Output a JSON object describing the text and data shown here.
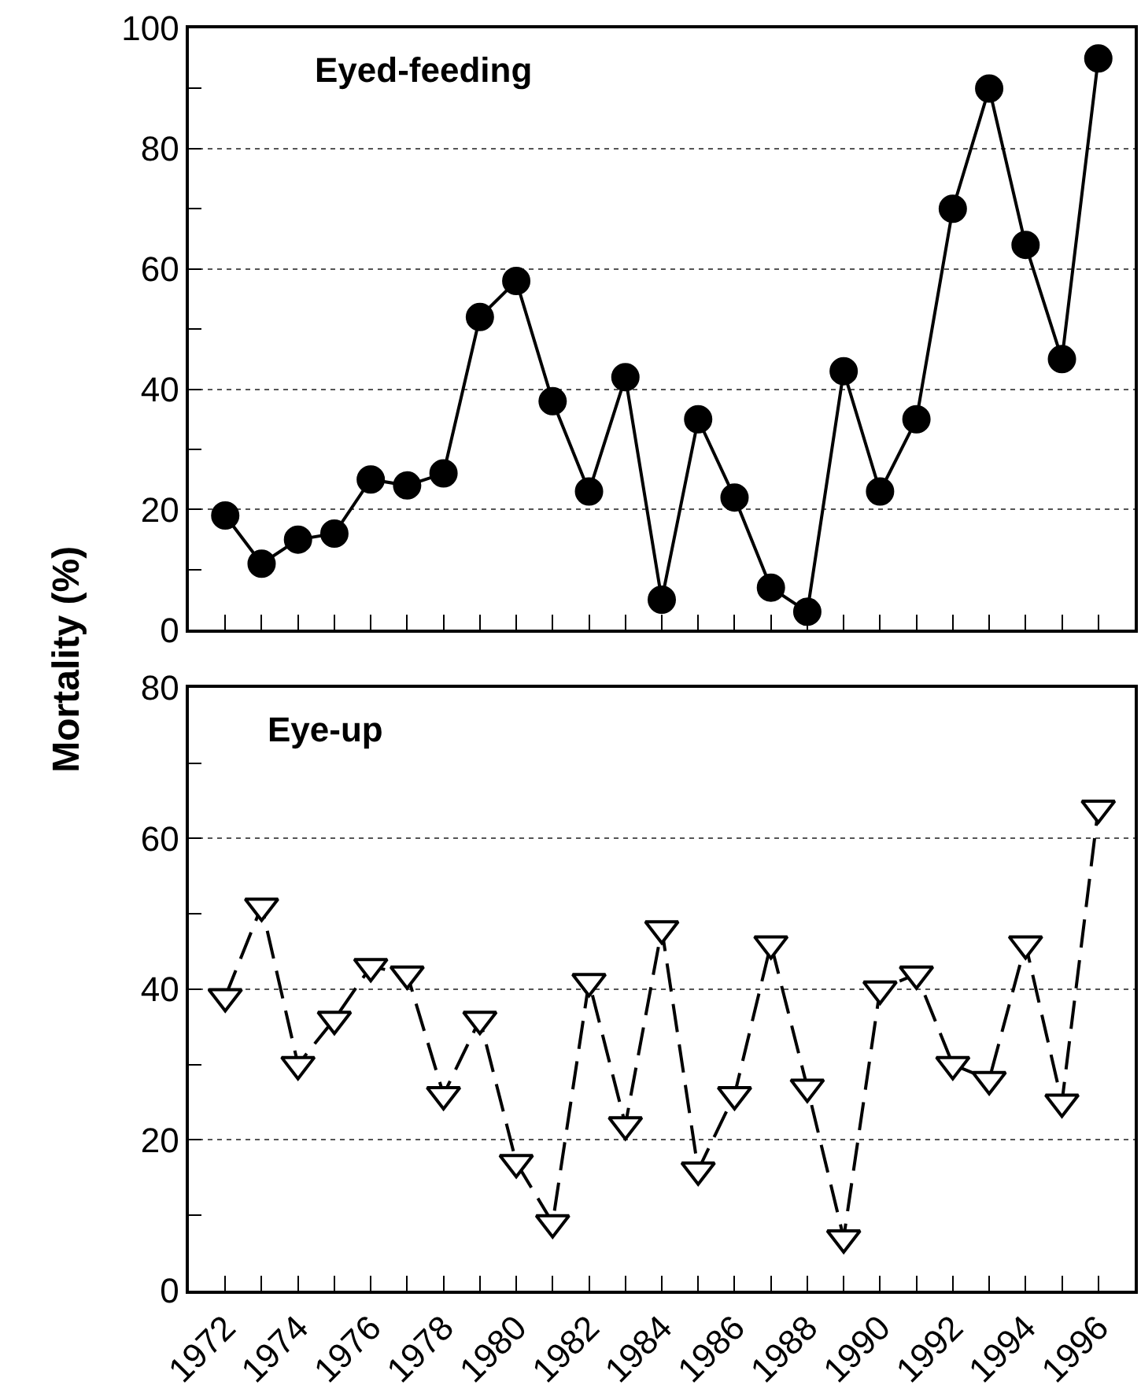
{
  "chart_data": [
    {
      "type": "line",
      "title": "Eyed-feeding",
      "ylabel": "Mortality (%)",
      "x": [
        1972,
        1973,
        1974,
        1975,
        1976,
        1977,
        1978,
        1979,
        1980,
        1981,
        1982,
        1983,
        1984,
        1985,
        1986,
        1987,
        1988,
        1989,
        1990,
        1991,
        1992,
        1993,
        1994,
        1995,
        1996
      ],
      "series": [
        {
          "color": "#000000",
          "marker": "circle",
          "line_style": "solid",
          "values": [
            19,
            11,
            15,
            16,
            25,
            24,
            26,
            52,
            58,
            38,
            23,
            42,
            5,
            35,
            22,
            7,
            3,
            43,
            23,
            35,
            70,
            90,
            64,
            45,
            95
          ]
        }
      ],
      "xlim": [
        1971,
        1997
      ],
      "xticks": [
        {
          "value": 1972,
          "label": null
        },
        {
          "value": 1973,
          "label": null
        },
        {
          "value": 1974,
          "label": null
        },
        {
          "value": 1975,
          "label": null
        },
        {
          "value": 1976,
          "label": null
        },
        {
          "value": 1977,
          "label": null
        },
        {
          "value": 1978,
          "label": null
        },
        {
          "value": 1979,
          "label": null
        },
        {
          "value": 1980,
          "label": null
        },
        {
          "value": 1981,
          "label": null
        },
        {
          "value": 1982,
          "label": null
        },
        {
          "value": 1983,
          "label": null
        },
        {
          "value": 1984,
          "label": null
        },
        {
          "value": 1985,
          "label": null
        },
        {
          "value": 1986,
          "label": null
        },
        {
          "value": 1987,
          "label": null
        },
        {
          "value": 1988,
          "label": null
        },
        {
          "value": 1989,
          "label": null
        },
        {
          "value": 1990,
          "label": null
        },
        {
          "value": 1991,
          "label": null
        },
        {
          "value": 1992,
          "label": null
        },
        {
          "value": 1993,
          "label": null
        },
        {
          "value": 1994,
          "label": null
        },
        {
          "value": 1995,
          "label": null
        },
        {
          "value": 1996,
          "label": null
        }
      ],
      "ylim": [
        0,
        100
      ],
      "yticks": [
        0,
        {
          "value": 10,
          "label": null
        },
        20,
        {
          "value": 30,
          "label": null
        },
        40,
        {
          "value": 50,
          "label": null
        },
        60,
        {
          "value": 70,
          "label": null
        },
        80,
        {
          "value": 90,
          "label": null
        },
        100
      ],
      "grid": "y",
      "tick_labels": "y"
    },
    {
      "type": "line",
      "title": "Eye-up",
      "x": [
        1972,
        1973,
        1974,
        1975,
        1976,
        1977,
        1978,
        1979,
        1980,
        1981,
        1982,
        1983,
        1984,
        1985,
        1986,
        1987,
        1988,
        1989,
        1990,
        1991,
        1992,
        1993,
        1994,
        1995,
        1996
      ],
      "series": [
        {
          "color": "#000000",
          "marker": "triangle-down-open",
          "line_style": "dashed",
          "values": [
            39,
            51,
            30,
            36,
            43,
            42,
            26,
            36,
            17,
            9,
            41,
            22,
            48,
            16,
            26,
            46,
            27,
            7,
            40,
            42,
            30,
            28,
            46,
            25,
            64
          ]
        }
      ],
      "xlim": [
        1971,
        1997
      ],
      "xticks": [
        1972,
        {
          "value": 1973,
          "label": null
        },
        1974,
        {
          "value": 1975,
          "label": null
        },
        1976,
        {
          "value": 1977,
          "label": null
        },
        1978,
        {
          "value": 1979,
          "label": null
        },
        1980,
        {
          "value": 1981,
          "label": null
        },
        1982,
        {
          "value": 1983,
          "label": null
        },
        1984,
        {
          "value": 1985,
          "label": null
        },
        1986,
        {
          "value": 1987,
          "label": null
        },
        1988,
        {
          "value": 1989,
          "label": null
        },
        1990,
        {
          "value": 1991,
          "label": null
        },
        1992,
        {
          "value": 1993,
          "label": null
        },
        1994,
        {
          "value": 1995,
          "label": null
        },
        1996
      ],
      "ylim": [
        0,
        80
      ],
      "yticks": [
        0,
        {
          "value": 10,
          "label": null
        },
        20,
        {
          "value": 30,
          "label": null
        },
        40,
        {
          "value": 50,
          "label": null
        },
        60,
        {
          "value": 70,
          "label": null
        },
        80
      ],
      "grid": "y"
    }
  ]
}
